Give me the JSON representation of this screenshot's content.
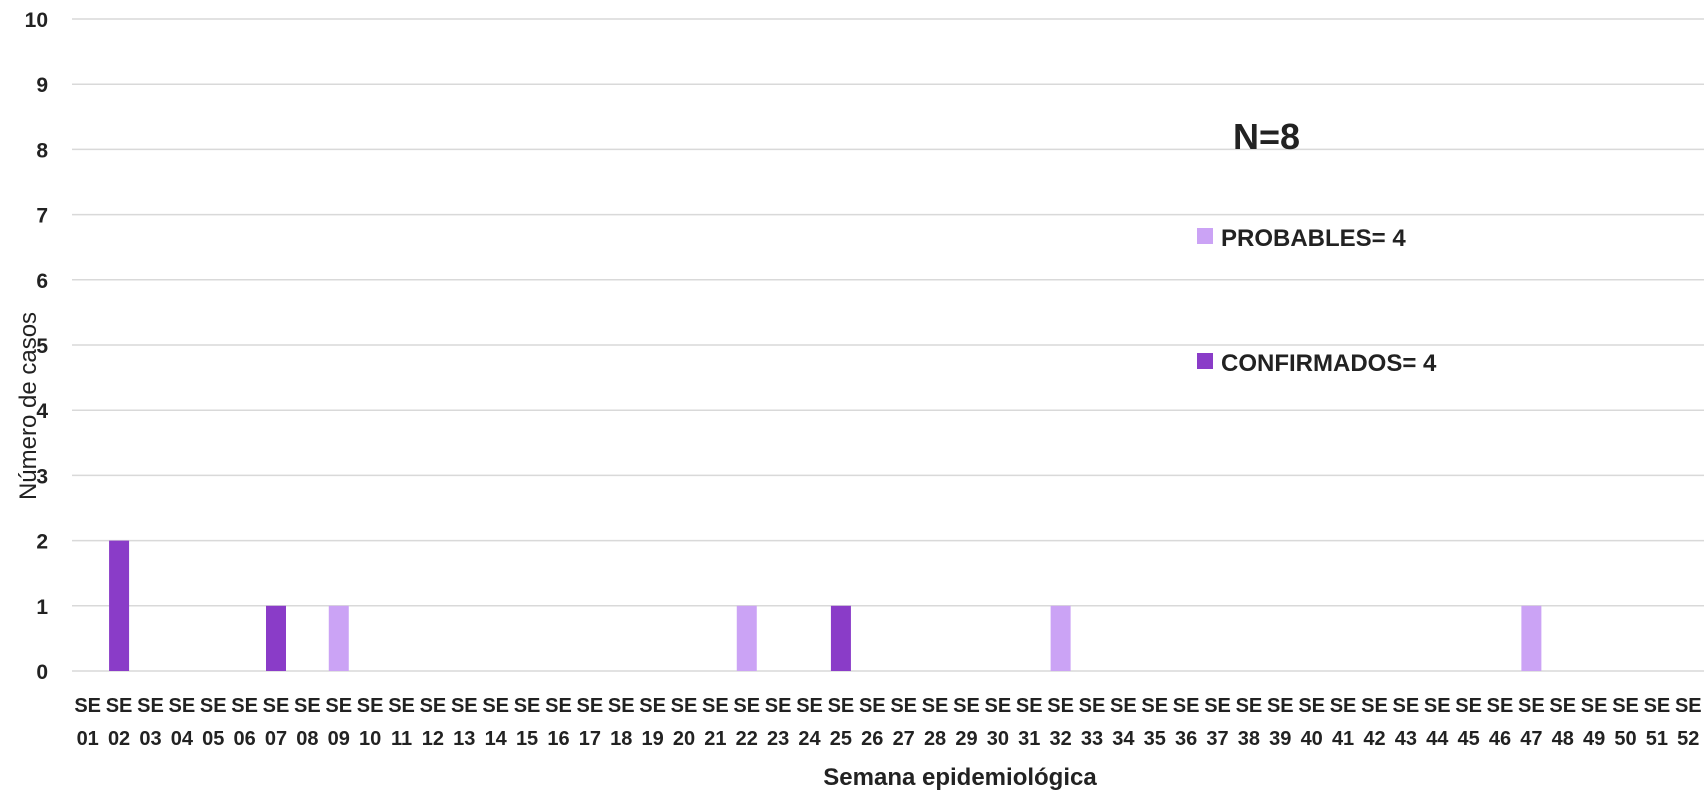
{
  "chart_data": {
    "type": "bar",
    "xlabel": "Semana epidemiológica",
    "ylabel": "Número de casos",
    "ylim": [
      0,
      10
    ],
    "yticks": [
      0,
      1,
      2,
      3,
      4,
      5,
      6,
      7,
      8,
      9,
      10
    ],
    "grid": true,
    "categories": [
      "SE 01",
      "SE 02",
      "SE 03",
      "SE 04",
      "SE 05",
      "SE 06",
      "SE 07",
      "SE 08",
      "SE 09",
      "SE 10",
      "SE 11",
      "SE 12",
      "SE 13",
      "SE 14",
      "SE 15",
      "SE 16",
      "SE 17",
      "SE 18",
      "SE 19",
      "SE 20",
      "SE 21",
      "SE 22",
      "SE 23",
      "SE 24",
      "SE 25",
      "SE 26",
      "SE 27",
      "SE 28",
      "SE 29",
      "SE 30",
      "SE 31",
      "SE 32",
      "SE 33",
      "SE 34",
      "SE 35",
      "SE 36",
      "SE 37",
      "SE 38",
      "SE 39",
      "SE 40",
      "SE 41",
      "SE 42",
      "SE 43",
      "SE 44",
      "SE 45",
      "SE 46",
      "SE 47",
      "SE 48",
      "SE 49",
      "SE 50",
      "SE 51",
      "SE 52"
    ],
    "series": [
      {
        "name": "PROBABLES",
        "color": "#cba3f5",
        "values": [
          0,
          0,
          0,
          0,
          0,
          0,
          0,
          0,
          1,
          0,
          0,
          0,
          0,
          0,
          0,
          0,
          0,
          0,
          0,
          0,
          0,
          1,
          0,
          0,
          0,
          0,
          0,
          0,
          0,
          0,
          0,
          1,
          0,
          0,
          0,
          0,
          0,
          0,
          0,
          0,
          0,
          0,
          0,
          0,
          0,
          0,
          1,
          0,
          0,
          0,
          0,
          0
        ]
      },
      {
        "name": "CONFIRMADOS",
        "color": "#8a3cc8",
        "values": [
          0,
          2,
          0,
          0,
          0,
          0,
          1,
          0,
          0,
          0,
          0,
          0,
          0,
          0,
          0,
          0,
          0,
          0,
          0,
          0,
          0,
          0,
          0,
          0,
          1,
          0,
          0,
          0,
          0,
          0,
          0,
          0,
          0,
          0,
          0,
          0,
          0,
          0,
          0,
          0,
          0,
          0,
          0,
          0,
          0,
          0,
          0,
          0,
          0,
          0,
          0,
          0
        ]
      }
    ],
    "annotation": "N=8",
    "legend": {
      "placement": "right",
      "entries": [
        {
          "label": "PROBABLES= 4",
          "color": "#cba3f5"
        },
        {
          "label": "CONFIRMADOS= 4",
          "color": "#8a3cc8"
        }
      ]
    },
    "gridline_color": "#d9d9d9"
  }
}
